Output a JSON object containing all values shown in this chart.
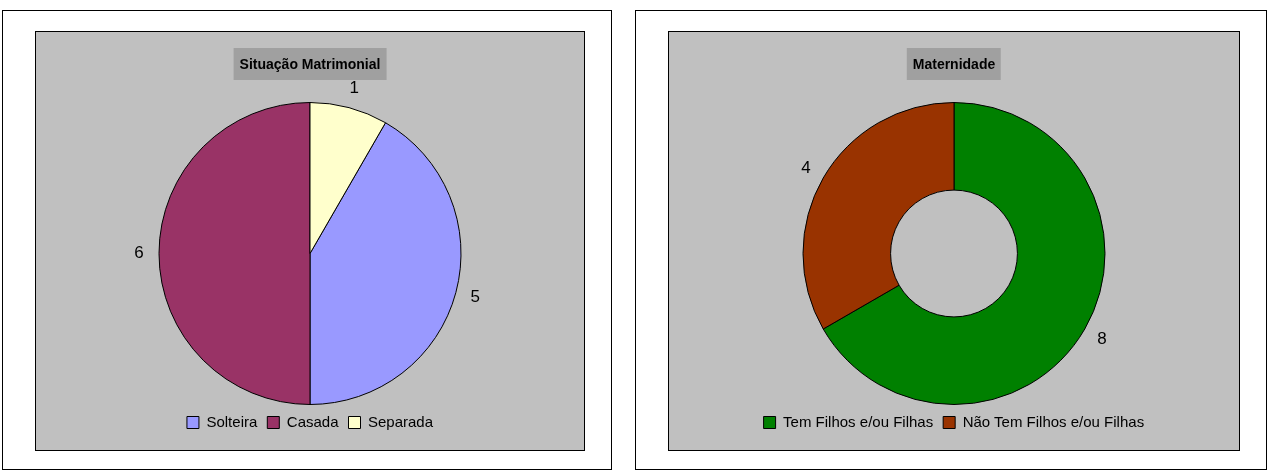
{
  "chart_data": [
    {
      "type": "pie",
      "title": "Situação Matrimonial",
      "categories": [
        "Solteira",
        "Casada",
        "Separada"
      ],
      "values": [
        5,
        6,
        1
      ],
      "colors": [
        "#9999ff",
        "#993366",
        "#ffffcc"
      ],
      "data_labels": true,
      "legend": "bottom"
    },
    {
      "type": "donut",
      "title": "Maternidade",
      "categories": [
        "Tem Filhos e/ou Filhas",
        "Não Tem Filhos e/ou Filhas"
      ],
      "values": [
        8,
        4
      ],
      "colors": [
        "#008000",
        "#993300"
      ],
      "data_labels": true,
      "legend": "bottom"
    }
  ]
}
